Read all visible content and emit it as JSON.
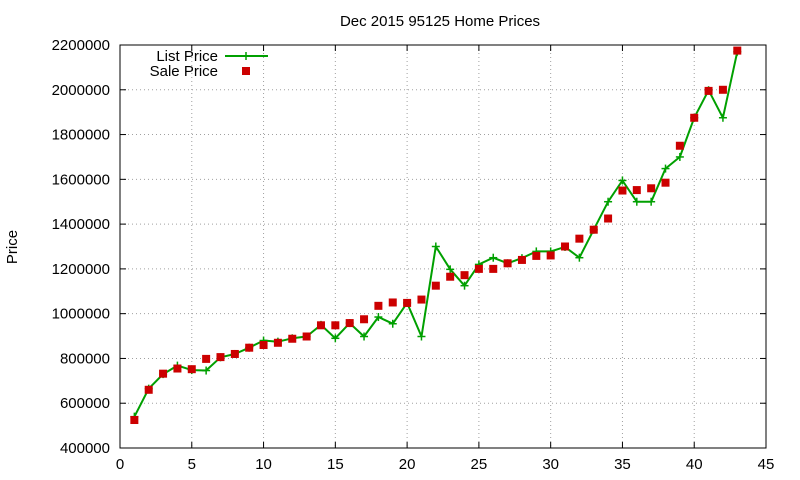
{
  "chart_data": {
    "type": "line",
    "title": "Dec 2015 95125 Home Prices",
    "xlabel": "",
    "ylabel": "Price",
    "xlim": [
      0,
      45
    ],
    "ylim": [
      400000,
      2200000
    ],
    "xticks": [
      0,
      5,
      10,
      15,
      20,
      25,
      30,
      35,
      40,
      45
    ],
    "yticks": [
      400000,
      600000,
      800000,
      1000000,
      1200000,
      1400000,
      1600000,
      1800000,
      2000000,
      2200000
    ],
    "grid": true,
    "legend_position": "top-left",
    "series": [
      {
        "name": "List Price",
        "style": "line with plus markers",
        "color": "#00a000",
        "x": [
          1,
          2,
          3,
          4,
          5,
          6,
          7,
          8,
          9,
          10,
          11,
          12,
          13,
          14,
          15,
          16,
          17,
          18,
          19,
          20,
          21,
          22,
          23,
          24,
          25,
          26,
          27,
          28,
          29,
          30,
          31,
          32,
          33,
          34,
          35,
          36,
          37,
          38,
          39,
          40,
          41,
          42,
          43
        ],
        "y": [
          540000,
          665000,
          730000,
          768000,
          748000,
          746000,
          805000,
          820000,
          848000,
          880000,
          875000,
          890000,
          898000,
          950000,
          890000,
          958000,
          898000,
          985000,
          955000,
          1048000,
          898000,
          1300000,
          1198000,
          1125000,
          1220000,
          1250000,
          1225000,
          1248000,
          1278000,
          1278000,
          1298000,
          1250000,
          1375000,
          1500000,
          1595000,
          1500000,
          1500000,
          1648000,
          1700000,
          1875000,
          1998000,
          1875000,
          2170000
        ]
      },
      {
        "name": "Sale Price",
        "style": "square markers",
        "color": "#cc0000",
        "x": [
          1,
          2,
          3,
          4,
          5,
          6,
          7,
          8,
          9,
          10,
          11,
          12,
          13,
          14,
          15,
          16,
          17,
          18,
          19,
          20,
          21,
          22,
          23,
          24,
          25,
          26,
          27,
          28,
          29,
          30,
          31,
          32,
          33,
          34,
          35,
          36,
          37,
          38,
          39,
          40,
          41,
          42,
          43
        ],
        "y": [
          525000,
          660000,
          732000,
          755000,
          752000,
          798000,
          806000,
          820000,
          848000,
          860000,
          870000,
          888000,
          898000,
          948000,
          948000,
          958000,
          975000,
          1035000,
          1050000,
          1048000,
          1063000,
          1125000,
          1165000,
          1172000,
          1200000,
          1200000,
          1225000,
          1240000,
          1258000,
          1260000,
          1300000,
          1335000,
          1375000,
          1425000,
          1550000,
          1552000,
          1560000,
          1585000,
          1750000,
          1875000,
          1995000,
          2000000,
          2175000
        ]
      }
    ]
  }
}
